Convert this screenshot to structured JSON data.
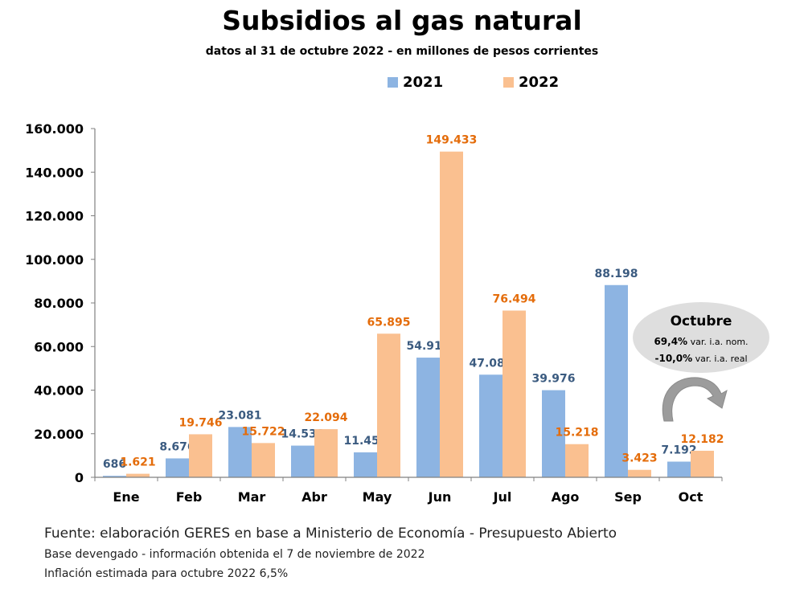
{
  "chart_data": {
    "type": "bar",
    "title": "Subsidios al gas natural",
    "subtitle": "datos al 31 de octubre 2022 - en millones de pesos corrientes",
    "categories": [
      "Ene",
      "Feb",
      "Mar",
      "Abr",
      "May",
      "Jun",
      "Jul",
      "Ago",
      "Sep",
      "Oct"
    ],
    "series": [
      {
        "name": "2021",
        "color": "#8db4e2",
        "label_color": "#3b5b80",
        "values": [
          686,
          8676,
          23081,
          14538,
          11458,
          54911,
          47086,
          39976,
          88198,
          7192
        ],
        "labels": [
          "686",
          "8.676",
          "23.081",
          "14.538",
          "11.458",
          "54.911",
          "47.086",
          "39.976",
          "88.198",
          "7.192"
        ]
      },
      {
        "name": "2022",
        "color": "#fac090",
        "label_color": "#e46c0a",
        "values": [
          1621,
          19746,
          15722,
          22094,
          65895,
          149433,
          76494,
          15218,
          3423,
          12182
        ],
        "labels": [
          "1.621",
          "19.746",
          "15.722",
          "22.094",
          "65.895",
          "149.433",
          "76.494",
          "15.218",
          "3.423",
          "12.182"
        ]
      }
    ],
    "ylim": [
      0,
      160000
    ],
    "yticks": [
      0,
      20000,
      40000,
      60000,
      80000,
      100000,
      120000,
      140000,
      160000
    ],
    "ytick_labels": [
      "0",
      "20.000",
      "40.000",
      "60.000",
      "80.000",
      "100.000",
      "120.000",
      "140.000",
      "160.000"
    ],
    "grid": false,
    "legend": "top-center"
  },
  "callout": {
    "title": "Octubre",
    "nominal_value": "69,4%",
    "nominal_text": "var. i.a. nom.",
    "real_value": "-10,0%",
    "real_text": "var. i.a. real",
    "arrow": "curved-arrow-icon"
  },
  "footer": {
    "source": "Fuente: elaboración GERES en base a Ministerio de Economía - Presupuesto Abierto",
    "basis": "Base devengado - información obtenida el 7 de noviembre de 2022",
    "inflation": "Inflación estimada para octubre 2022 6,5%"
  }
}
